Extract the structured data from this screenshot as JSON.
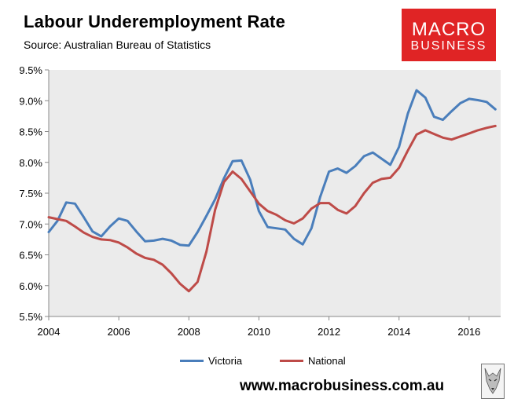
{
  "header": {
    "title": "Labour Underemployment Rate",
    "source": "Source: Australian Bureau of Statistics"
  },
  "logo": {
    "line1": "MACRO",
    "line2": "BUSINESS",
    "color": "#e02425"
  },
  "footer": {
    "url": "www.macrobusiness.com.au"
  },
  "chart_data": {
    "type": "line",
    "title": "Labour Underemployment Rate",
    "xlabel": "",
    "ylabel": "",
    "xlim": [
      2004,
      2016.9
    ],
    "ylim": [
      5.5,
      9.5
    ],
    "x_ticks": [
      2004,
      2006,
      2008,
      2010,
      2012,
      2014,
      2016
    ],
    "y_ticks": [
      "5.5%",
      "6.0%",
      "6.5%",
      "7.0%",
      "7.5%",
      "8.0%",
      "8.5%",
      "9.0%",
      "9.5%"
    ],
    "y_tick_values": [
      5.5,
      6.0,
      6.5,
      7.0,
      7.5,
      8.0,
      8.5,
      9.0,
      9.5
    ],
    "grid": false,
    "legend": "bottom",
    "plot_background": "#ebebeb",
    "x": [
      2004.0,
      2004.25,
      2004.5,
      2004.75,
      2005.0,
      2005.25,
      2005.5,
      2005.75,
      2006.0,
      2006.25,
      2006.5,
      2006.75,
      2007.0,
      2007.25,
      2007.5,
      2007.75,
      2008.0,
      2008.25,
      2008.5,
      2008.75,
      2009.0,
      2009.25,
      2009.5,
      2009.75,
      2010.0,
      2010.25,
      2010.5,
      2010.75,
      2011.0,
      2011.25,
      2011.5,
      2011.75,
      2012.0,
      2012.25,
      2012.5,
      2012.75,
      2013.0,
      2013.25,
      2013.5,
      2013.75,
      2014.0,
      2014.25,
      2014.5,
      2014.75,
      2015.0,
      2015.25,
      2015.5,
      2015.75,
      2016.0,
      2016.25,
      2016.5,
      2016.75
    ],
    "series": [
      {
        "name": "Victoria",
        "color": "#4a7ebb",
        "values": [
          6.87,
          7.05,
          7.35,
          7.33,
          7.11,
          6.88,
          6.8,
          6.96,
          7.09,
          7.05,
          6.88,
          6.72,
          6.73,
          6.76,
          6.73,
          6.66,
          6.65,
          6.87,
          7.13,
          7.4,
          7.74,
          8.02,
          8.03,
          7.72,
          7.21,
          6.95,
          6.93,
          6.91,
          6.76,
          6.67,
          6.93,
          7.44,
          7.85,
          7.9,
          7.83,
          7.94,
          8.1,
          8.16,
          8.06,
          7.96,
          8.25,
          8.79,
          9.17,
          9.05,
          8.74,
          8.69,
          8.83,
          8.96,
          9.03,
          9.01,
          8.98,
          8.86
        ]
      },
      {
        "name": "National",
        "color": "#be4b48",
        "values": [
          7.11,
          7.08,
          7.05,
          6.96,
          6.86,
          6.79,
          6.75,
          6.74,
          6.7,
          6.62,
          6.52,
          6.45,
          6.42,
          6.34,
          6.2,
          6.03,
          5.91,
          6.06,
          6.55,
          7.23,
          7.68,
          7.85,
          7.73,
          7.53,
          7.33,
          7.21,
          7.15,
          7.06,
          7.01,
          7.09,
          7.25,
          7.34,
          7.34,
          7.23,
          7.17,
          7.29,
          7.5,
          7.67,
          7.73,
          7.75,
          7.91,
          8.19,
          8.45,
          8.52,
          8.46,
          8.4,
          8.37,
          8.42,
          8.47,
          8.52,
          8.56,
          8.59
        ]
      }
    ]
  }
}
